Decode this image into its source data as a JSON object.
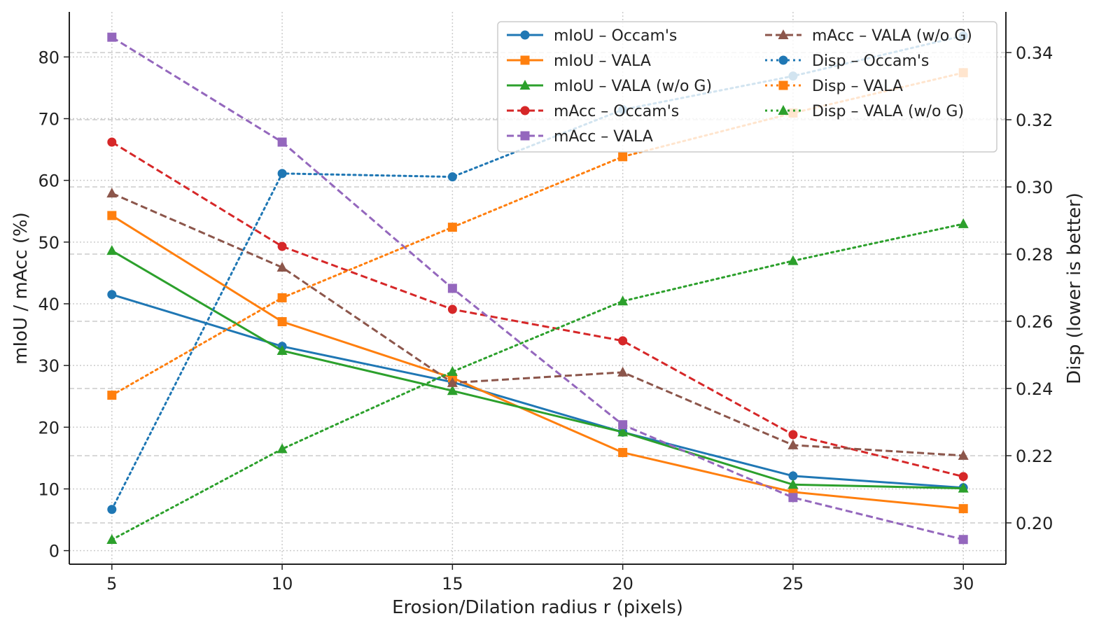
{
  "chart_data": {
    "type": "line",
    "title": "",
    "xlabel": "Erosion/Dilation radius r (pixels)",
    "ylabel": "mIoU / mAcc (%)",
    "ylabel_right": "Disp (lower is better)",
    "x": [
      5,
      10,
      15,
      20,
      25,
      30
    ],
    "xticks": [
      5,
      10,
      15,
      20,
      25,
      30
    ],
    "yticks": [
      0,
      10,
      20,
      30,
      40,
      50,
      60,
      70,
      80
    ],
    "yticks_right": [
      "0.20",
      "0.22",
      "0.24",
      "0.26",
      "0.28",
      "0.30",
      "0.32",
      "0.34"
    ],
    "xlim": [
      3.75,
      31.25
    ],
    "ylim": [
      -2.2,
      87.3
    ],
    "ylim_right": [
      0.1877,
      0.3521
    ],
    "grid": true,
    "legend_position": "top-right",
    "series": [
      {
        "name": "mIoU – Occam's",
        "axis": "left",
        "color": "#1f77b4",
        "style": "solid",
        "marker": "circle",
        "values": [
          41.5,
          33.1,
          27.3,
          19.2,
          12.1,
          10.2
        ]
      },
      {
        "name": "mIoU – VALA",
        "axis": "left",
        "color": "#ff7f0e",
        "style": "solid",
        "marker": "square",
        "values": [
          54.3,
          37.1,
          28.0,
          15.9,
          9.5,
          6.8
        ]
      },
      {
        "name": "mIoU – VALA (w/o G)",
        "axis": "left",
        "color": "#2ca02c",
        "style": "solid",
        "marker": "triangle",
        "values": [
          48.6,
          32.4,
          25.9,
          19.2,
          10.7,
          10.1
        ]
      },
      {
        "name": "mAcc – Occam's",
        "axis": "left",
        "color": "#d62728",
        "style": "dashed",
        "marker": "circle",
        "values": [
          66.2,
          49.3,
          39.1,
          34.0,
          18.8,
          12.0
        ]
      },
      {
        "name": "mAcc – VALA",
        "axis": "left",
        "color": "#9467bd",
        "style": "dashed",
        "marker": "square",
        "values": [
          83.2,
          66.2,
          42.5,
          20.4,
          8.6,
          1.8
        ]
      },
      {
        "name": "mAcc – VALA (w/o G)",
        "axis": "left",
        "color": "#8c564b",
        "style": "dashed",
        "marker": "triangle",
        "values": [
          57.9,
          45.9,
          27.2,
          28.9,
          17.1,
          15.4
        ]
      },
      {
        "name": "Disp – Occam's",
        "axis": "right",
        "color": "#1f77b4",
        "style": "dotted",
        "marker": "circle",
        "values": [
          0.204,
          0.304,
          0.303,
          0.323,
          0.333,
          0.345
        ]
      },
      {
        "name": "Disp – VALA",
        "axis": "right",
        "color": "#ff7f0e",
        "style": "dotted",
        "marker": "square",
        "values": [
          0.238,
          0.267,
          0.288,
          0.309,
          0.322,
          0.334
        ]
      },
      {
        "name": "Disp – VALA (w/o G)",
        "axis": "right",
        "color": "#2ca02c",
        "style": "dotted",
        "marker": "triangle",
        "values": [
          0.195,
          0.222,
          0.245,
          0.266,
          0.278,
          0.289
        ]
      }
    ]
  }
}
